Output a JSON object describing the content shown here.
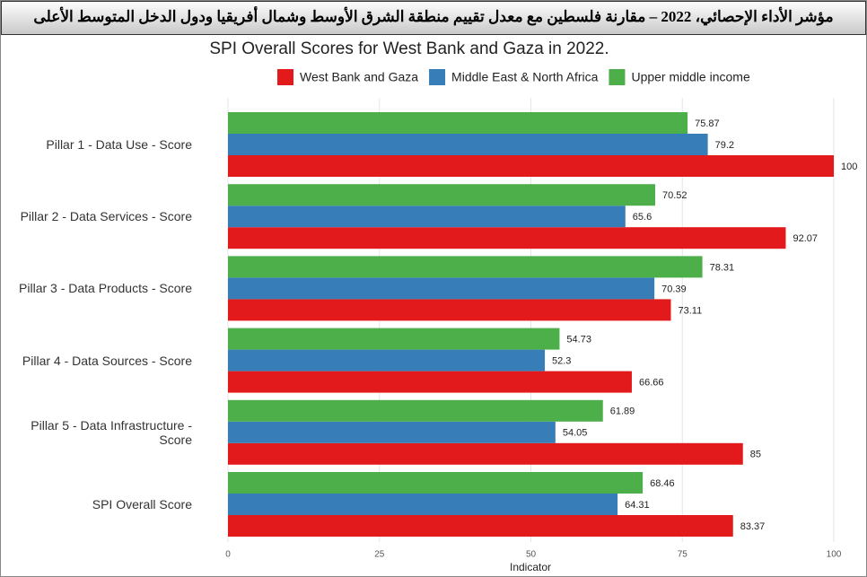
{
  "header": {
    "title": "مؤشر الأداء الإحصائي، 2022 – مقارنة فلسطين مع معدل تقييم منطقة الشرق الأوسط وشمال أفريقيا ودول الدخل المتوسط الأعلى"
  },
  "chart_data": {
    "type": "bar",
    "orientation": "horizontal",
    "title": "SPI Overall Scores for West Bank and Gaza in 2022.",
    "x_label": "Indicator",
    "categories": [
      "Pillar 1 - Data Use - Score",
      "Pillar 2 - Data Services - Score",
      "Pillar 3 - Data Products - Score",
      "Pillar 4 - Data Sources - Score",
      "Pillar 5 - Data Infrastructure - Score",
      "SPI Overall Score"
    ],
    "series": [
      {
        "name": "West Bank and Gaza",
        "color": "#e31a1c",
        "values": [
          100,
          92.07,
          73.11,
          66.66,
          85,
          83.37
        ]
      },
      {
        "name": "Middle East & North Africa",
        "color": "#377eb8",
        "values": [
          79.2,
          65.6,
          70.39,
          52.3,
          54.05,
          64.31
        ]
      },
      {
        "name": "Upper middle income",
        "color": "#4daf4a",
        "values": [
          75.87,
          70.52,
          78.31,
          54.73,
          61.89,
          68.46
        ]
      }
    ],
    "xlim": [
      0,
      100
    ],
    "xticks": [
      0,
      25,
      50,
      75,
      100
    ],
    "grid": true,
    "legend": "top"
  }
}
